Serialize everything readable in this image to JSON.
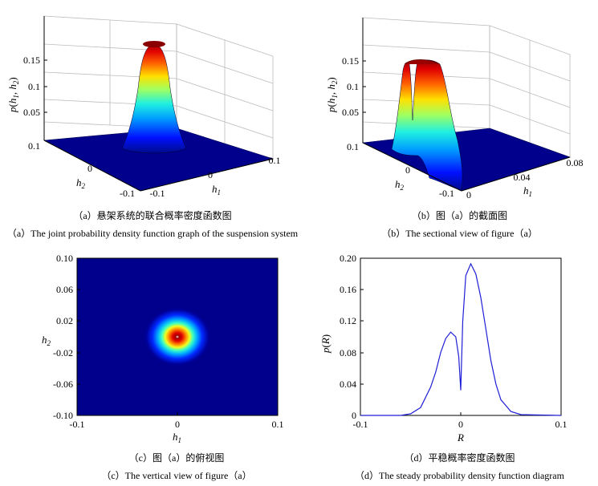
{
  "captions": {
    "a_zh": "（a）悬架系统的联合概率密度函数图",
    "a_en": "（a）The joint probability density function graph of the suspension system",
    "b_zh": "（b）图（a）的截面图",
    "b_en": "（b）The sectional view of figure（a）",
    "c_zh": "（c）图（a）的俯视图",
    "c_en": "（c）The vertical view of figure（a）",
    "d_zh": "（d）平稳概率密度函数图",
    "d_en": "（d）The steady probability density function diagram"
  },
  "chart_data": [
    {
      "id": "a",
      "type": "surface",
      "title": "",
      "xlabel": "h1",
      "ylabel": "h2",
      "zlabel": "p(h1, h2)",
      "x_ticks": [
        "-0.1",
        "0",
        "0.1"
      ],
      "y_ticks": [
        "0.1",
        "0",
        "-0.1"
      ],
      "z_ticks": [
        "0.05",
        "0.1",
        "0.15"
      ],
      "xlim": [
        -0.1,
        0.1
      ],
      "ylim": [
        -0.1,
        0.1
      ],
      "z_peak": 0.175,
      "colormap": "jet"
    },
    {
      "id": "b",
      "type": "surface-section",
      "title": "",
      "xlabel": "h1",
      "ylabel": "h2",
      "zlabel": "p(h1, h2)",
      "x_ticks": [
        "0",
        "0.04",
        "0.08"
      ],
      "y_ticks": [
        "0.1",
        "0",
        "-0.1"
      ],
      "z_ticks": [
        "0.05",
        "0.1",
        "0.15"
      ],
      "xlim": [
        0,
        0.1
      ],
      "ylim": [
        -0.1,
        0.1
      ],
      "z_peak": 0.155,
      "colormap": "jet"
    },
    {
      "id": "c",
      "type": "heatmap",
      "title": "",
      "xlabel": "h1",
      "ylabel": "h2",
      "x_ticks": [
        "-0.1",
        "0",
        "0.1"
      ],
      "y_ticks": [
        "0.10",
        "0.06",
        "0.02",
        "-0.02",
        "-0.06",
        "-0.10"
      ],
      "xlim": [
        -0.1,
        0.1
      ],
      "ylim": [
        -0.1,
        0.1
      ],
      "center": [
        0,
        0
      ],
      "colormap": "jet"
    },
    {
      "id": "d",
      "type": "line",
      "title": "",
      "xlabel": "R",
      "ylabel": "p(R)",
      "x_ticks": [
        "-0.1",
        "0",
        "0.1"
      ],
      "y_ticks": [
        "0",
        "0.04",
        "0.08",
        "0.12",
        "0.16",
        "0.20"
      ],
      "xlim": [
        -0.1,
        0.1
      ],
      "ylim": [
        0,
        0.2
      ],
      "line_color": "#1f1fd6",
      "series": [
        {
          "x": [
            -0.1,
            -0.06,
            -0.05,
            -0.04,
            -0.03,
            -0.025,
            -0.02,
            -0.015,
            -0.01,
            -0.005,
            -0.002,
            0.0,
            0.002,
            0.005,
            0.01,
            0.015,
            0.02,
            0.025,
            0.03,
            0.035,
            0.04,
            0.05,
            0.06,
            0.1
          ],
          "y": [
            0.0,
            0.0,
            0.002,
            0.01,
            0.036,
            0.055,
            0.08,
            0.098,
            0.106,
            0.1,
            0.075,
            0.032,
            0.12,
            0.178,
            0.193,
            0.18,
            0.15,
            0.11,
            0.07,
            0.04,
            0.02,
            0.005,
            0.001,
            0.0
          ]
        }
      ]
    }
  ]
}
